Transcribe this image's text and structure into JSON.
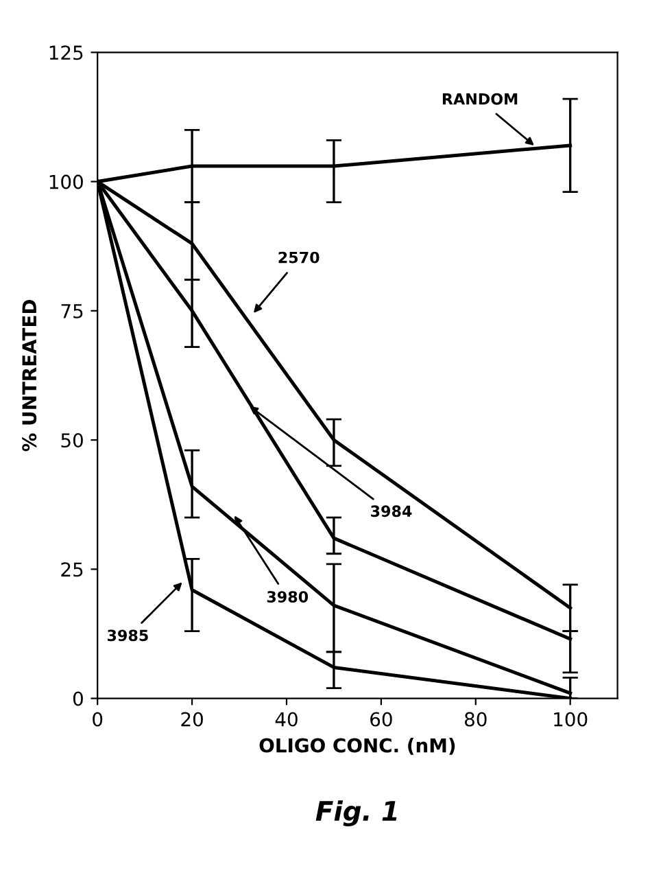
{
  "chart_data": {
    "type": "line",
    "xlabel": "OLIGO CONC. (nM)",
    "ylabel": "% UNTREATED",
    "xlim": [
      0,
      110
    ],
    "ylim": [
      0,
      125
    ],
    "xticks": [
      0,
      20,
      40,
      60,
      80,
      100
    ],
    "yticks": [
      0,
      25,
      50,
      75,
      100,
      125
    ],
    "grid": false,
    "marker": "none",
    "line_style": "solid",
    "series": [
      {
        "color": "#000000",
        "x": [
          0,
          20,
          50,
          100
        ],
        "values": [
          100,
          103,
          103,
          107
        ],
        "errors": [
          null,
          [
            96,
            110
          ],
          [
            96,
            108
          ],
          [
            98,
            116
          ]
        ]
      },
      {
        "color": "#000000",
        "x": [
          0,
          20,
          50,
          100
        ],
        "values": [
          100,
          88,
          50,
          17.5
        ],
        "errors": [
          null,
          [
            81,
            96
          ],
          [
            45,
            54
          ],
          [
            13,
            22
          ]
        ]
      },
      {
        "color": "#000000",
        "x": [
          0,
          20,
          50,
          100
        ],
        "values": [
          100,
          75,
          31,
          11.5
        ],
        "errors": [
          null,
          [
            68,
            81
          ],
          [
            28,
            35
          ],
          [
            5,
            13
          ]
        ]
      },
      {
        "color": "#000000",
        "x": [
          0,
          20,
          50,
          100
        ],
        "values": [
          100,
          41,
          18,
          1
        ],
        "errors": [
          null,
          [
            35,
            48
          ],
          [
            9,
            26
          ],
          [
            0,
            4
          ]
        ]
      },
      {
        "color": "#000000",
        "x": [
          0,
          20,
          50,
          100
        ],
        "values": [
          100,
          21,
          6,
          0
        ],
        "errors": [
          null,
          [
            13,
            27
          ],
          [
            2,
            9
          ],
          null
        ]
      }
    ],
    "annotations": [
      {
        "text": "RANDOM",
        "x": 93,
        "y": 106.5
      },
      {
        "text": "2570",
        "x": 32.5,
        "y": 74
      },
      {
        "text": "3984",
        "x": 31.5,
        "y": 57
      },
      {
        "text": "3980",
        "x": 28.5,
        "y": 36
      },
      {
        "text": "3985",
        "x": 18.5,
        "y": 23
      },
      "Fig. 1"
    ]
  }
}
